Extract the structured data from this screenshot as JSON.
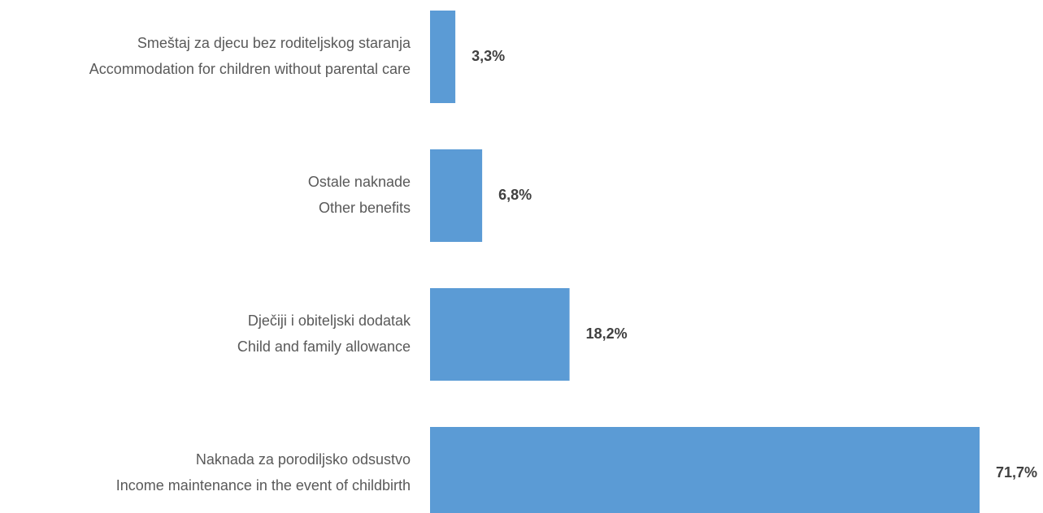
{
  "chart_data": {
    "type": "barh",
    "categories": [
      [
        "Smeštaj za djecu bez roditeljskog staranja",
        "Accommodation for children without parental care"
      ],
      [
        "Ostale naknade",
        "Other benefits"
      ],
      [
        "Dječiji i obiteljski dodatak",
        "Child and family allowance"
      ],
      [
        "Naknada za porodiljsko odsustvo",
        "Income maintenance in the event of childbirth"
      ]
    ],
    "values": [
      3.3,
      6.8,
      18.2,
      71.7
    ],
    "value_labels": [
      "3,3%",
      "6,8%",
      "18,2%",
      "71,7%"
    ],
    "color": "#5b9bd5"
  }
}
